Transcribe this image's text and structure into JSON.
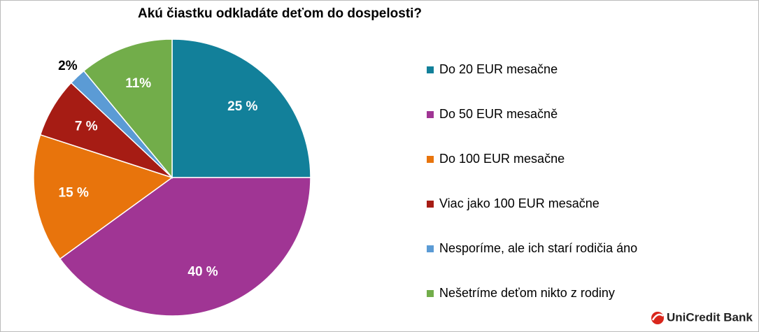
{
  "chart_data": {
    "type": "pie",
    "title": "Akú čiastku odkladáte deťom do dospelosti?",
    "categories": [
      "Do 20 EUR mesačne",
      "Do 50 EUR mesačně",
      "Do 100 EUR mesačne",
      "Viac jako 100 EUR mesačne",
      "Nesporíme, ale ich starí rodičia áno",
      "Nešetríme deťom nikto z rodiny"
    ],
    "values": [
      25,
      40,
      15,
      7,
      2,
      11
    ],
    "value_labels": [
      "25 %",
      "40 %",
      "15 %",
      "7 %",
      "2%",
      "11%"
    ],
    "colors": [
      "#12809a",
      "#a03594",
      "#e8740c",
      "#a61c14",
      "#5b9bd5",
      "#72ad4a"
    ],
    "legend": "right"
  },
  "logo": "UniCredit Bank"
}
